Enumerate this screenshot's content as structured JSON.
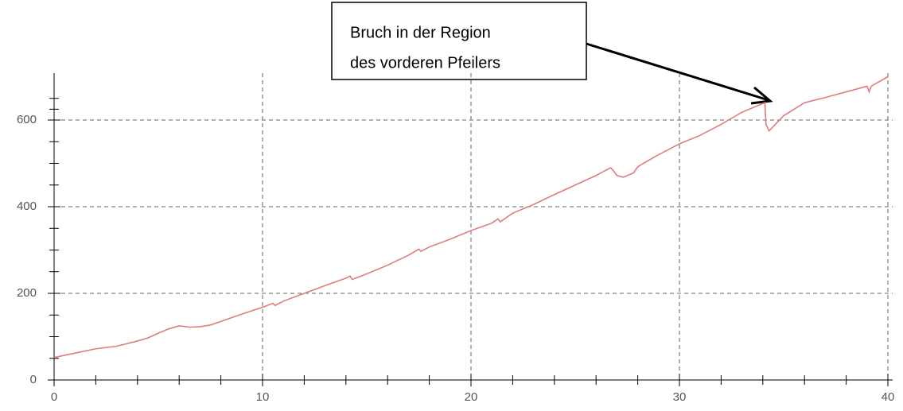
{
  "chart_data": {
    "type": "line",
    "annotation": [
      "Bruch in der Region",
      "des vorderen Pfeilers"
    ],
    "xlim": [
      0,
      40
    ],
    "xticks": [
      0,
      10,
      20,
      30,
      40
    ],
    "ylim": [
      0,
      700
    ],
    "yticks": [
      0,
      200,
      400,
      600
    ],
    "grid": true,
    "series": [
      {
        "color": "#e07c7c",
        "x": [
          0,
          1,
          2,
          3,
          4,
          4.5,
          5,
          5.5,
          6,
          6.5,
          7,
          7.5,
          8,
          9,
          10,
          10.5,
          10.6,
          11,
          12,
          13,
          14,
          14.2,
          14.3,
          15,
          16,
          17,
          17.5,
          17.6,
          18,
          19,
          20,
          21,
          21.3,
          21.4,
          22,
          23,
          24,
          25,
          26,
          26.7,
          26.8,
          27,
          27.3,
          27.8,
          28,
          28.2,
          29,
          30,
          31,
          32,
          33,
          34,
          34.1,
          34.15,
          34.3,
          34.6,
          35,
          36,
          37,
          38,
          39,
          39.1,
          39.2,
          40
        ],
        "values": [
          52,
          62,
          72,
          78,
          90,
          97,
          108,
          118,
          125,
          122,
          123,
          127,
          135,
          152,
          168,
          177,
          172,
          182,
          200,
          218,
          235,
          240,
          232,
          245,
          265,
          288,
          302,
          297,
          307,
          325,
          345,
          362,
          372,
          365,
          385,
          405,
          428,
          450,
          472,
          490,
          485,
          472,
          468,
          478,
          492,
          498,
          520,
          545,
          565,
          590,
          618,
          638,
          640,
          590,
          575,
          590,
          610,
          640,
          652,
          665,
          678,
          665,
          678,
          700
        ]
      }
    ]
  }
}
